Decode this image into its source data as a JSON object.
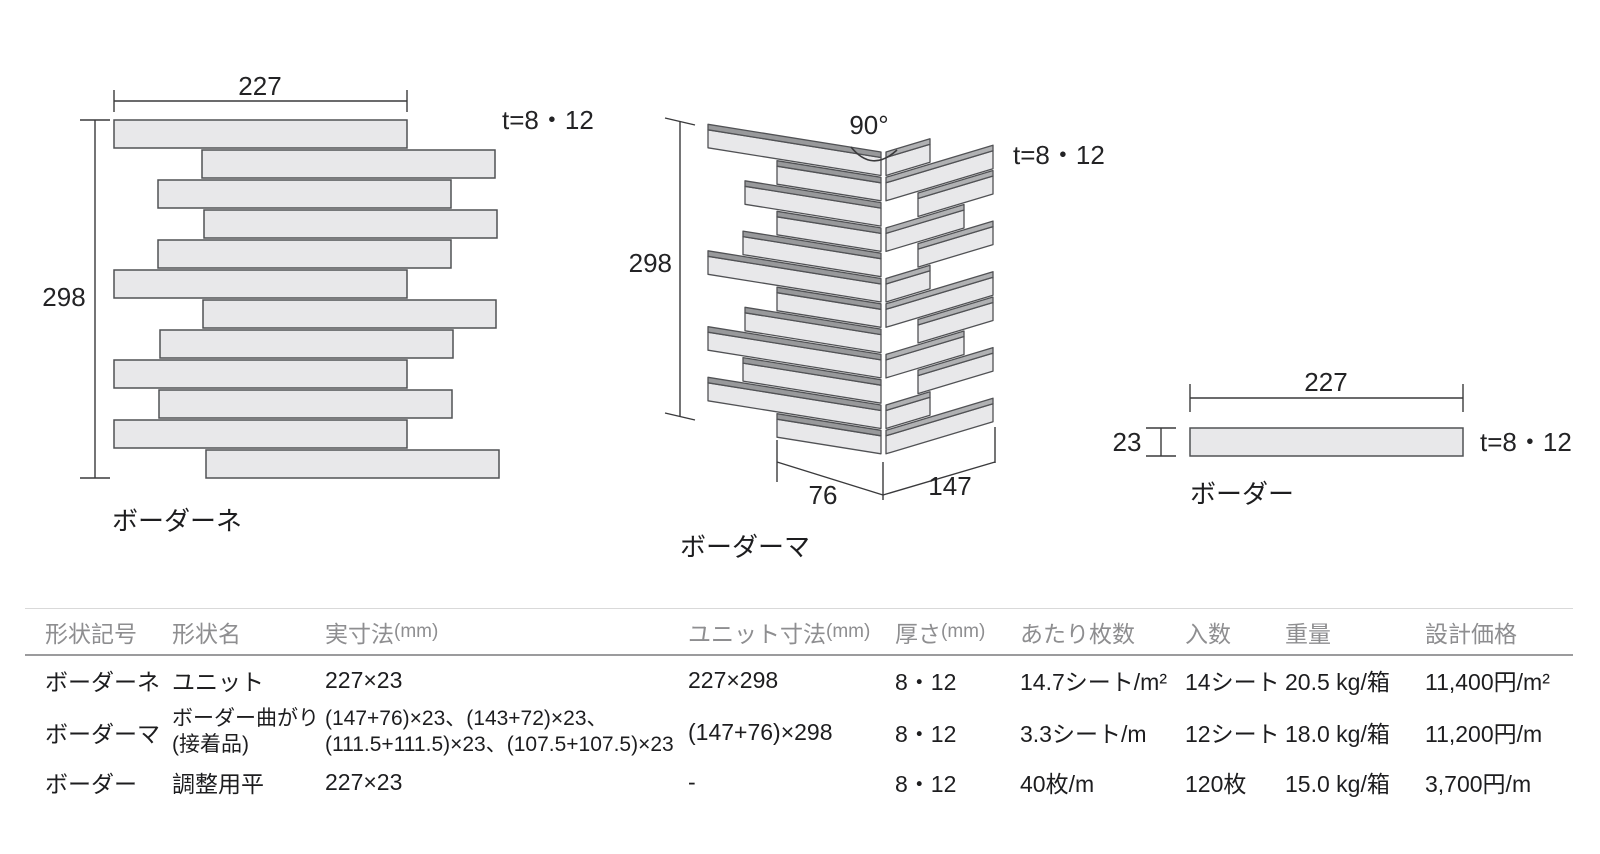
{
  "colors": {
    "tile_fill": "#e8e8ea",
    "tile_outline": "#515255",
    "top_face_left": "#98999b",
    "top_face_right": "#b0b1b3",
    "dim_line": "#3a3a3c",
    "text": "#232325",
    "header_text": "#8e8e90",
    "body_text": "#1d1d1f",
    "rule_light": "#d9d9d9",
    "rule_dark": "#9b9b9d"
  },
  "diagrams": {
    "unit": {
      "label": "ボーダーネ",
      "width_dim": "227",
      "height_dim": "298",
      "thickness": "t=8・12",
      "bar_offsets": [
        0,
        88,
        44,
        90,
        44,
        0,
        89,
        46,
        0,
        45,
        0,
        92
      ]
    },
    "corner": {
      "label": "ボーダーマ",
      "angle": "90°",
      "height_dim": "298",
      "left_dim": "76",
      "right_dim": "147",
      "thickness": "t=8・12",
      "left_row_starts": [
        708,
        777,
        745,
        777,
        743,
        708,
        777,
        745,
        708,
        743,
        708,
        777
      ],
      "right_rows": [
        [
          886,
          930
        ],
        [
          886,
          993
        ],
        [
          918,
          993
        ],
        [
          886,
          964
        ],
        [
          918,
          993
        ],
        [
          886,
          930
        ],
        [
          886,
          993
        ],
        [
          918,
          993
        ],
        [
          886,
          964
        ],
        [
          918,
          993
        ],
        [
          886,
          930
        ],
        [
          886,
          993
        ]
      ]
    },
    "border": {
      "label": "ボーダー",
      "width_dim": "227",
      "height_dim": "23",
      "thickness": "t=8・12"
    }
  },
  "table": {
    "columns": [
      {
        "label": "形状記号",
        "unit": ""
      },
      {
        "label": "形状名",
        "unit": ""
      },
      {
        "label": "実寸法",
        "unit": "(mm)"
      },
      {
        "label": "ユニット寸法",
        "unit": "(mm)"
      },
      {
        "label": "厚さ",
        "unit": "(mm)"
      },
      {
        "label": "あたり枚数",
        "unit": ""
      },
      {
        "label": "入数",
        "unit": ""
      },
      {
        "label": "重量",
        "unit": ""
      },
      {
        "label": "設計価格",
        "unit": ""
      }
    ],
    "rows": [
      {
        "code": "ボーダーネ",
        "name": [
          "ユニット"
        ],
        "actual": [
          "227×23"
        ],
        "unit_size": "227×298",
        "thickness": "8・12",
        "pieces": "14.7シート/m²",
        "qty": "14シート",
        "weight": "20.5 kg/箱",
        "price": "11,400円/m²"
      },
      {
        "code": "ボーダーマ",
        "name": [
          "ボーダー曲がり",
          "(接着品)"
        ],
        "actual": [
          "(147+76)×23、(143+72)×23、",
          "(111.5+111.5)×23、(107.5+107.5)×23"
        ],
        "unit_size": "(147+76)×298",
        "thickness": "8・12",
        "pieces": "3.3シート/m",
        "qty": "12シート",
        "weight": "18.0 kg/箱",
        "price": "11,200円/m"
      },
      {
        "code": "ボーダー",
        "name": [
          "調整用平"
        ],
        "actual": [
          "227×23"
        ],
        "unit_size": "-",
        "thickness": "8・12",
        "pieces": "40枚/m",
        "qty": "120枚",
        "weight": "15.0 kg/箱",
        "price": "3,700円/m"
      }
    ]
  }
}
